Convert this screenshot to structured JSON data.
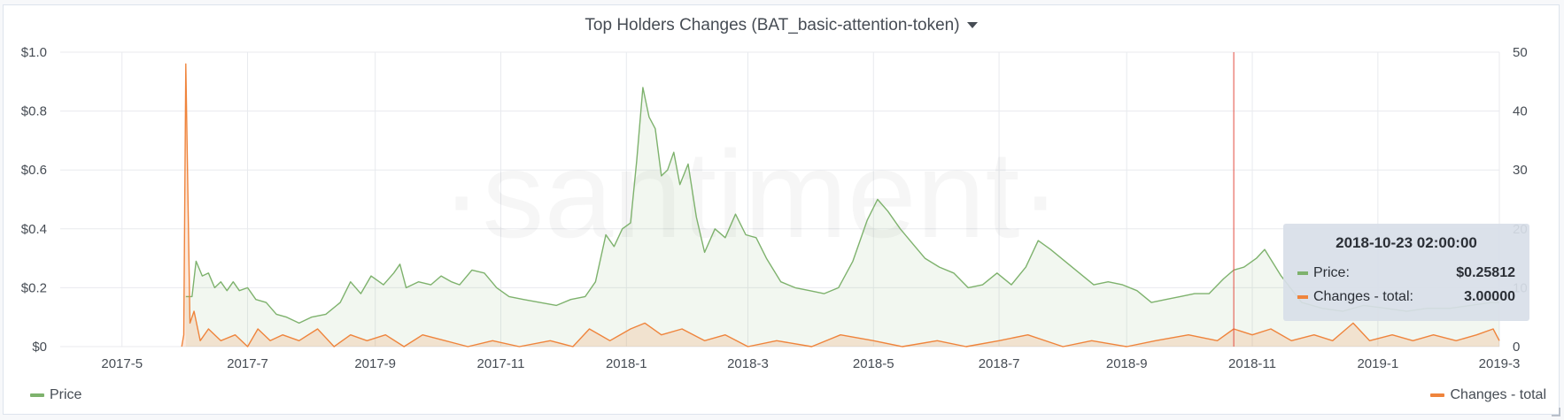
{
  "panel": {
    "title": "Top Holders Changes (BAT_basic-attention-token)"
  },
  "watermark": "·santiment·",
  "legend": {
    "price": "Price",
    "changes": "Changes - total"
  },
  "tooltip": {
    "date": "2018-10-23 02:00:00",
    "price_label": "Price:",
    "price_value": "$0.25812",
    "changes_label": "Changes - total:",
    "changes_value": "3.00000"
  },
  "colors": {
    "price": "#7eb26d",
    "changes": "#ef843c",
    "cursor": "#e24d42",
    "grid": "#e8eaee"
  },
  "chart_data": {
    "type": "line",
    "x_range": [
      "2017-04-01",
      "2019-03-01"
    ],
    "x_ticks": [
      {
        "date": "2017-05-01",
        "label": "2017-5"
      },
      {
        "date": "2017-07-01",
        "label": "2017-7"
      },
      {
        "date": "2017-09-01",
        "label": "2017-9"
      },
      {
        "date": "2017-11-01",
        "label": "2017-11"
      },
      {
        "date": "2018-01-01",
        "label": "2018-1"
      },
      {
        "date": "2018-03-01",
        "label": "2018-3"
      },
      {
        "date": "2018-05-01",
        "label": "2018-5"
      },
      {
        "date": "2018-07-01",
        "label": "2018-7"
      },
      {
        "date": "2018-09-01",
        "label": "2018-9"
      },
      {
        "date": "2018-11-01",
        "label": "2018-11"
      },
      {
        "date": "2019-01-01",
        "label": "2019-1"
      },
      {
        "date": "2019-03-01",
        "label": "2019-3"
      }
    ],
    "y_left": {
      "range": [
        0,
        1.0
      ],
      "ticks": [
        {
          "value": 0,
          "label": "$0"
        },
        {
          "value": 0.2,
          "label": "$0.2"
        },
        {
          "value": 0.4,
          "label": "$0.4"
        },
        {
          "value": 0.6,
          "label": "$0.6"
        },
        {
          "value": 0.8,
          "label": "$0.8"
        },
        {
          "value": 1.0,
          "label": "$1.0"
        }
      ]
    },
    "y_right": {
      "range": [
        0,
        50
      ],
      "ticks": [
        {
          "value": 0,
          "label": "0"
        },
        {
          "value": 10,
          "label": "10"
        },
        {
          "value": 20,
          "label": "20"
        },
        {
          "value": 30,
          "label": "30"
        },
        {
          "value": 40,
          "label": "40"
        },
        {
          "value": 50,
          "label": "50"
        }
      ]
    },
    "grid": true,
    "legend_position": "bottom",
    "cursor_date": "2018-10-23",
    "series": [
      {
        "name": "Price",
        "axis": "left",
        "fill": true,
        "points": [
          [
            "2017-06-01",
            0.17
          ],
          [
            "2017-06-04",
            0.17
          ],
          [
            "2017-06-06",
            0.29
          ],
          [
            "2017-06-09",
            0.24
          ],
          [
            "2017-06-12",
            0.25
          ],
          [
            "2017-06-15",
            0.2
          ],
          [
            "2017-06-18",
            0.22
          ],
          [
            "2017-06-21",
            0.19
          ],
          [
            "2017-06-24",
            0.22
          ],
          [
            "2017-06-27",
            0.19
          ],
          [
            "2017-07-01",
            0.2
          ],
          [
            "2017-07-05",
            0.16
          ],
          [
            "2017-07-10",
            0.15
          ],
          [
            "2017-07-15",
            0.11
          ],
          [
            "2017-07-20",
            0.1
          ],
          [
            "2017-07-26",
            0.08
          ],
          [
            "2017-08-01",
            0.1
          ],
          [
            "2017-08-08",
            0.11
          ],
          [
            "2017-08-15",
            0.15
          ],
          [
            "2017-08-20",
            0.22
          ],
          [
            "2017-08-25",
            0.18
          ],
          [
            "2017-08-30",
            0.24
          ],
          [
            "2017-09-05",
            0.21
          ],
          [
            "2017-09-10",
            0.25
          ],
          [
            "2017-09-13",
            0.28
          ],
          [
            "2017-09-16",
            0.2
          ],
          [
            "2017-09-22",
            0.22
          ],
          [
            "2017-09-28",
            0.21
          ],
          [
            "2017-10-03",
            0.24
          ],
          [
            "2017-10-08",
            0.22
          ],
          [
            "2017-10-12",
            0.21
          ],
          [
            "2017-10-18",
            0.26
          ],
          [
            "2017-10-24",
            0.25
          ],
          [
            "2017-10-30",
            0.2
          ],
          [
            "2017-11-05",
            0.17
          ],
          [
            "2017-11-12",
            0.16
          ],
          [
            "2017-11-20",
            0.15
          ],
          [
            "2017-11-28",
            0.14
          ],
          [
            "2017-12-05",
            0.16
          ],
          [
            "2017-12-12",
            0.17
          ],
          [
            "2017-12-17",
            0.22
          ],
          [
            "2017-12-22",
            0.38
          ],
          [
            "2017-12-26",
            0.34
          ],
          [
            "2017-12-30",
            0.4
          ],
          [
            "2018-01-03",
            0.42
          ],
          [
            "2018-01-06",
            0.63
          ],
          [
            "2018-01-09",
            0.88
          ],
          [
            "2018-01-12",
            0.78
          ],
          [
            "2018-01-15",
            0.74
          ],
          [
            "2018-01-18",
            0.58
          ],
          [
            "2018-01-21",
            0.6
          ],
          [
            "2018-01-24",
            0.66
          ],
          [
            "2018-01-27",
            0.55
          ],
          [
            "2018-01-31",
            0.62
          ],
          [
            "2018-02-04",
            0.44
          ],
          [
            "2018-02-08",
            0.32
          ],
          [
            "2018-02-13",
            0.4
          ],
          [
            "2018-02-18",
            0.37
          ],
          [
            "2018-02-23",
            0.45
          ],
          [
            "2018-02-28",
            0.38
          ],
          [
            "2018-03-05",
            0.37
          ],
          [
            "2018-03-10",
            0.3
          ],
          [
            "2018-03-17",
            0.22
          ],
          [
            "2018-03-24",
            0.2
          ],
          [
            "2018-03-31",
            0.19
          ],
          [
            "2018-04-07",
            0.18
          ],
          [
            "2018-04-14",
            0.2
          ],
          [
            "2018-04-21",
            0.29
          ],
          [
            "2018-04-28",
            0.43
          ],
          [
            "2018-05-03",
            0.5
          ],
          [
            "2018-05-08",
            0.46
          ],
          [
            "2018-05-14",
            0.4
          ],
          [
            "2018-05-20",
            0.35
          ],
          [
            "2018-05-26",
            0.3
          ],
          [
            "2018-06-02",
            0.27
          ],
          [
            "2018-06-09",
            0.25
          ],
          [
            "2018-06-16",
            0.2
          ],
          [
            "2018-06-23",
            0.21
          ],
          [
            "2018-06-30",
            0.25
          ],
          [
            "2018-07-07",
            0.21
          ],
          [
            "2018-07-14",
            0.27
          ],
          [
            "2018-07-20",
            0.36
          ],
          [
            "2018-07-26",
            0.33
          ],
          [
            "2018-08-02",
            0.29
          ],
          [
            "2018-08-09",
            0.25
          ],
          [
            "2018-08-16",
            0.21
          ],
          [
            "2018-08-23",
            0.22
          ],
          [
            "2018-08-30",
            0.21
          ],
          [
            "2018-09-06",
            0.19
          ],
          [
            "2018-09-13",
            0.15
          ],
          [
            "2018-09-20",
            0.16
          ],
          [
            "2018-09-27",
            0.17
          ],
          [
            "2018-10-04",
            0.18
          ],
          [
            "2018-10-11",
            0.18
          ],
          [
            "2018-10-18",
            0.23
          ],
          [
            "2018-10-23",
            0.26
          ],
          [
            "2018-10-28",
            0.27
          ],
          [
            "2018-11-03",
            0.3
          ],
          [
            "2018-11-07",
            0.33
          ],
          [
            "2018-11-15",
            0.24
          ],
          [
            "2018-11-25",
            0.15
          ],
          [
            "2018-12-05",
            0.13
          ],
          [
            "2018-12-15",
            0.12
          ],
          [
            "2018-12-25",
            0.14
          ],
          [
            "2019-01-05",
            0.13
          ],
          [
            "2019-01-15",
            0.12
          ],
          [
            "2019-01-25",
            0.13
          ],
          [
            "2019-02-05",
            0.13
          ],
          [
            "2019-02-15",
            0.14
          ],
          [
            "2019-02-25",
            0.15
          ],
          [
            "2019-03-01",
            0.15
          ]
        ]
      },
      {
        "name": "Changes - total",
        "axis": "right",
        "fill": true,
        "points": [
          [
            "2017-05-30",
            0
          ],
          [
            "2017-05-31",
            2
          ],
          [
            "2017-06-01",
            48
          ],
          [
            "2017-06-03",
            4
          ],
          [
            "2017-06-05",
            6
          ],
          [
            "2017-06-08",
            1
          ],
          [
            "2017-06-12",
            3
          ],
          [
            "2017-06-18",
            1
          ],
          [
            "2017-06-25",
            2
          ],
          [
            "2017-07-01",
            0
          ],
          [
            "2017-07-06",
            3
          ],
          [
            "2017-07-12",
            1
          ],
          [
            "2017-07-18",
            2
          ],
          [
            "2017-07-26",
            1
          ],
          [
            "2017-08-04",
            3
          ],
          [
            "2017-08-12",
            0
          ],
          [
            "2017-08-20",
            2
          ],
          [
            "2017-08-28",
            1
          ],
          [
            "2017-09-06",
            2
          ],
          [
            "2017-09-15",
            0
          ],
          [
            "2017-09-24",
            2
          ],
          [
            "2017-10-05",
            1
          ],
          [
            "2017-10-16",
            0
          ],
          [
            "2017-10-28",
            1
          ],
          [
            "2017-11-10",
            0
          ],
          [
            "2017-11-25",
            1
          ],
          [
            "2017-12-06",
            0
          ],
          [
            "2017-12-14",
            3
          ],
          [
            "2017-12-24",
            1
          ],
          [
            "2018-01-03",
            3
          ],
          [
            "2018-01-10",
            4
          ],
          [
            "2018-01-18",
            2
          ],
          [
            "2018-01-28",
            3
          ],
          [
            "2018-02-08",
            1
          ],
          [
            "2018-02-18",
            2
          ],
          [
            "2018-03-01",
            0
          ],
          [
            "2018-03-15",
            1
          ],
          [
            "2018-04-01",
            0
          ],
          [
            "2018-04-15",
            2
          ],
          [
            "2018-05-01",
            1
          ],
          [
            "2018-05-15",
            0
          ],
          [
            "2018-06-01",
            1
          ],
          [
            "2018-06-15",
            0
          ],
          [
            "2018-07-01",
            1
          ],
          [
            "2018-07-15",
            2
          ],
          [
            "2018-08-01",
            0
          ],
          [
            "2018-08-15",
            1
          ],
          [
            "2018-09-01",
            0
          ],
          [
            "2018-09-15",
            1
          ],
          [
            "2018-10-01",
            2
          ],
          [
            "2018-10-15",
            1
          ],
          [
            "2018-10-23",
            3
          ],
          [
            "2018-11-01",
            2
          ],
          [
            "2018-11-10",
            3
          ],
          [
            "2018-11-20",
            1
          ],
          [
            "2018-12-01",
            2
          ],
          [
            "2018-12-10",
            1
          ],
          [
            "2018-12-20",
            4
          ],
          [
            "2018-12-28",
            1
          ],
          [
            "2019-01-08",
            2
          ],
          [
            "2019-01-18",
            1
          ],
          [
            "2019-01-28",
            2
          ],
          [
            "2019-02-08",
            1
          ],
          [
            "2019-02-18",
            2
          ],
          [
            "2019-02-26",
            3
          ],
          [
            "2019-03-01",
            1
          ]
        ]
      }
    ]
  }
}
